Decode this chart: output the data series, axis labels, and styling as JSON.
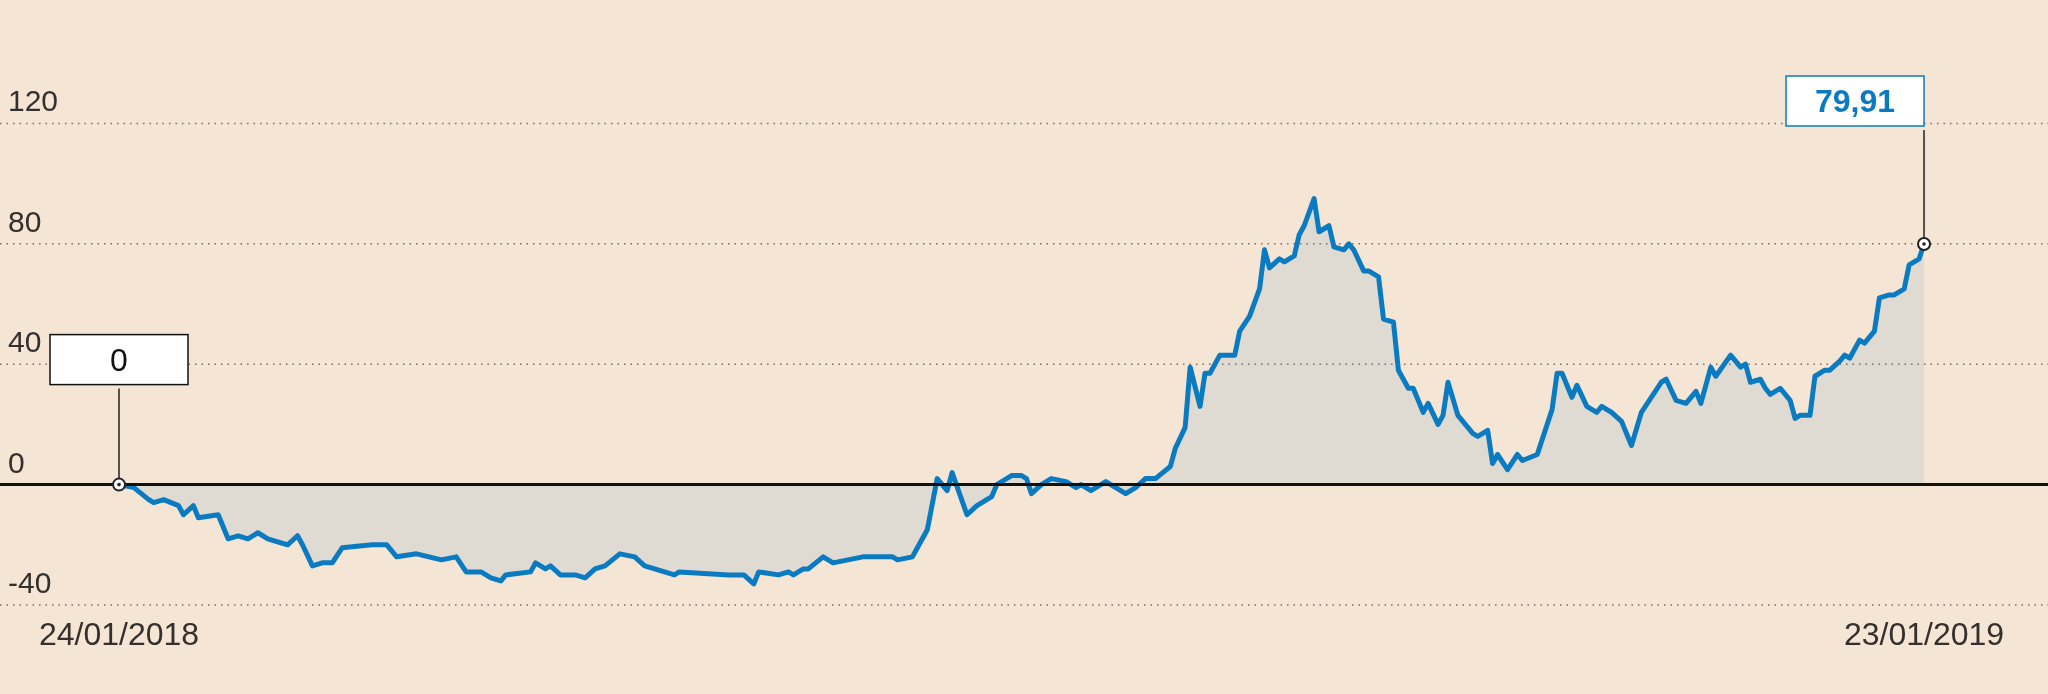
{
  "chart_data": {
    "type": "area",
    "xlim": [
      "2017-12-31",
      "2019-02-17"
    ],
    "xticks": [
      {
        "value": "2018-01-24",
        "label": "24/01/2018"
      },
      {
        "value": "2019-01-23",
        "label": "23/01/2019"
      }
    ],
    "ylim": [
      -40,
      160
    ],
    "yticks": [
      -40,
      0,
      40,
      80,
      120
    ],
    "grid": "y",
    "series": [
      {
        "color": "#0b7bc1",
        "x": [
          "2018-01-24",
          "2018-01-27",
          "2018-01-30",
          "2018-01-31",
          "2018-02-02",
          "2018-02-05",
          "2018-02-06",
          "2018-02-08",
          "2018-02-09",
          "2018-02-13",
          "2018-02-15",
          "2018-02-17",
          "2018-02-19",
          "2018-02-21",
          "2018-02-23",
          "2018-02-27",
          "2018-03-01",
          "2018-03-02",
          "2018-03-04",
          "2018-03-06",
          "2018-03-08",
          "2018-03-10",
          "2018-03-16",
          "2018-03-19",
          "2018-03-21",
          "2018-03-25",
          "2018-03-30",
          "2018-04-02",
          "2018-04-04",
          "2018-04-07",
          "2018-04-09",
          "2018-04-11",
          "2018-04-12",
          "2018-04-17",
          "2018-04-18",
          "2018-04-20",
          "2018-04-21",
          "2018-04-23",
          "2018-04-26",
          "2018-04-28",
          "2018-04-30",
          "2018-05-02",
          "2018-05-05",
          "2018-05-08",
          "2018-05-10",
          "2018-05-16",
          "2018-05-17",
          "2018-05-27",
          "2018-05-30",
          "2018-06-01",
          "2018-06-02",
          "2018-06-06",
          "2018-06-08",
          "2018-06-09",
          "2018-06-11",
          "2018-06-12",
          "2018-06-15",
          "2018-06-17",
          "2018-06-23",
          "2018-06-29",
          "2018-06-30",
          "2018-07-03",
          "2018-07-04",
          "2018-07-06",
          "2018-07-08",
          "2018-07-10",
          "2018-07-11",
          "2018-07-14",
          "2018-07-16",
          "2018-07-19",
          "2018-07-20",
          "2018-07-23",
          "2018-07-25",
          "2018-07-26",
          "2018-07-27",
          "2018-07-29",
          "2018-07-31",
          "2018-08-03",
          "2018-08-05",
          "2018-08-06",
          "2018-08-08",
          "2018-08-11",
          "2018-08-13",
          "2018-08-15",
          "2018-08-17",
          "2018-08-19",
          "2018-08-21",
          "2018-08-24",
          "2018-08-25",
          "2018-08-27",
          "2018-08-28",
          "2018-08-30",
          "2018-08-31",
          "2018-09-01",
          "2018-09-03",
          "2018-09-06",
          "2018-09-07",
          "2018-09-09",
          "2018-09-11",
          "2018-09-12",
          "2018-09-13",
          "2018-09-15",
          "2018-09-16",
          "2018-09-18",
          "2018-09-19",
          "2018-09-20",
          "2018-09-22",
          "2018-09-23",
          "2018-09-25",
          "2018-09-26",
          "2018-09-28",
          "2018-09-29",
          "2018-09-30",
          "2018-10-02",
          "2018-10-03",
          "2018-10-05",
          "2018-10-06",
          "2018-10-08",
          "2018-10-09",
          "2018-10-11",
          "2018-10-12",
          "2018-10-14",
          "2018-10-15",
          "2018-10-17",
          "2018-10-18",
          "2018-10-19",
          "2018-10-21",
          "2018-10-22",
          "2018-10-24",
          "2018-10-25",
          "2018-10-27",
          "2018-10-28",
          "2018-10-29",
          "2018-10-31",
          "2018-11-02",
          "2018-11-03",
          "2018-11-06",
          "2018-11-09",
          "2018-11-10",
          "2018-11-11",
          "2018-11-13",
          "2018-11-14",
          "2018-11-16",
          "2018-11-18",
          "2018-11-19",
          "2018-11-21",
          "2018-11-23",
          "2018-11-25",
          "2018-11-27",
          "2018-11-29",
          "2018-12-01",
          "2018-12-02",
          "2018-12-04",
          "2018-12-06",
          "2018-12-08",
          "2018-12-09",
          "2018-12-11",
          "2018-12-12",
          "2018-12-15",
          "2018-12-17",
          "2018-12-18",
          "2018-12-19",
          "2018-12-21",
          "2018-12-22",
          "2018-12-23",
          "2018-12-25",
          "2018-12-27",
          "2018-12-28",
          "2018-12-29",
          "2018-12-31",
          "2019-01-01",
          "2019-01-03",
          "2019-01-04",
          "2019-01-06",
          "2019-01-07",
          "2019-01-08",
          "2019-01-10",
          "2019-01-11",
          "2019-01-13",
          "2019-01-14",
          "2019-01-16",
          "2019-01-17",
          "2019-01-19",
          "2019-01-20",
          "2019-01-22",
          "2019-01-23"
        ],
        "values": [
          0,
          -1,
          -5,
          -6,
          -5,
          -7,
          -10,
          -7,
          -11,
          -10,
          -18,
          -17,
          -18,
          -16,
          -18,
          -20,
          -17,
          -20,
          -27,
          -26,
          -26,
          -21,
          -20,
          -20,
          -24,
          -23,
          -25,
          -24,
          -29,
          -29,
          -31,
          -32,
          -30,
          -29,
          -26,
          -28,
          -27,
          -30,
          -30,
          -31,
          -28,
          -27,
          -23,
          -24,
          -27,
          -30,
          -29,
          -30,
          -30,
          -33,
          -29,
          -30,
          -29,
          -30,
          -28,
          -28,
          -24,
          -26,
          -24,
          -24,
          -25,
          -24,
          -21,
          -15,
          2,
          -2,
          4,
          -10,
          -7,
          -4,
          0,
          3,
          3,
          2,
          -3,
          0,
          2,
          1,
          -1,
          0,
          -2,
          1,
          -1,
          -3,
          -1,
          2,
          2,
          6,
          12,
          19,
          39,
          26,
          37,
          37,
          43,
          43,
          51,
          56,
          65,
          78,
          72,
          75,
          74,
          76,
          83,
          86,
          95,
          84,
          86,
          79,
          78,
          80,
          78,
          71,
          71,
          69,
          55,
          54,
          38,
          32,
          32,
          24,
          27,
          20,
          23,
          34,
          23,
          21,
          17,
          16,
          18,
          7,
          10,
          5,
          10,
          8,
          10,
          25,
          37,
          37,
          29,
          33,
          26,
          24,
          26,
          24,
          21,
          13,
          24,
          29,
          34,
          35,
          28,
          27,
          31,
          27,
          39,
          36,
          43,
          39,
          40,
          34,
          35,
          32,
          30,
          32,
          28,
          22,
          23,
          23,
          36,
          38,
          38,
          41,
          43,
          42,
          48,
          47,
          51,
          62,
          63,
          63,
          65,
          73,
          75,
          79.91
        ],
        "value_labels": [
          "0",
          null,
          null,
          null,
          null,
          null,
          null,
          null,
          null,
          null,
          null,
          null,
          null,
          null,
          null,
          null,
          null,
          null,
          null,
          null,
          null,
          null,
          null,
          null,
          null,
          null,
          null,
          null,
          null,
          null,
          null,
          null,
          null,
          null,
          null,
          null,
          null,
          null,
          null,
          null,
          null,
          null,
          null,
          null,
          null,
          null,
          null,
          null,
          null,
          null,
          null,
          null,
          null,
          null,
          null,
          null,
          null,
          null,
          null,
          null,
          null,
          null,
          null,
          null,
          null,
          null,
          null,
          null,
          null,
          null,
          null,
          null,
          null,
          null,
          null,
          null,
          null,
          null,
          null,
          null,
          null,
          null,
          null,
          null,
          null,
          null,
          null,
          null,
          null,
          null,
          null,
          null,
          null,
          null,
          null,
          null,
          null,
          null,
          null,
          null,
          null,
          null,
          null,
          null,
          null,
          null,
          null,
          null,
          null,
          null,
          null,
          null,
          null,
          null,
          null,
          null,
          null,
          null,
          null,
          null,
          null,
          null,
          null,
          null,
          null,
          null,
          null,
          null,
          null,
          null,
          null,
          null,
          null,
          null,
          null,
          null,
          null,
          null,
          null,
          null,
          null,
          null,
          null,
          null,
          null,
          null,
          null,
          null,
          null,
          null,
          null,
          null,
          null,
          null,
          null,
          null,
          null,
          null,
          null,
          null,
          null,
          null,
          null,
          null,
          null,
          null,
          null,
          null,
          null,
          null,
          null,
          null,
          null,
          null,
          null,
          null,
          null,
          null,
          null,
          null,
          null,
          null,
          null,
          null,
          null,
          "79,91"
        ]
      }
    ]
  }
}
